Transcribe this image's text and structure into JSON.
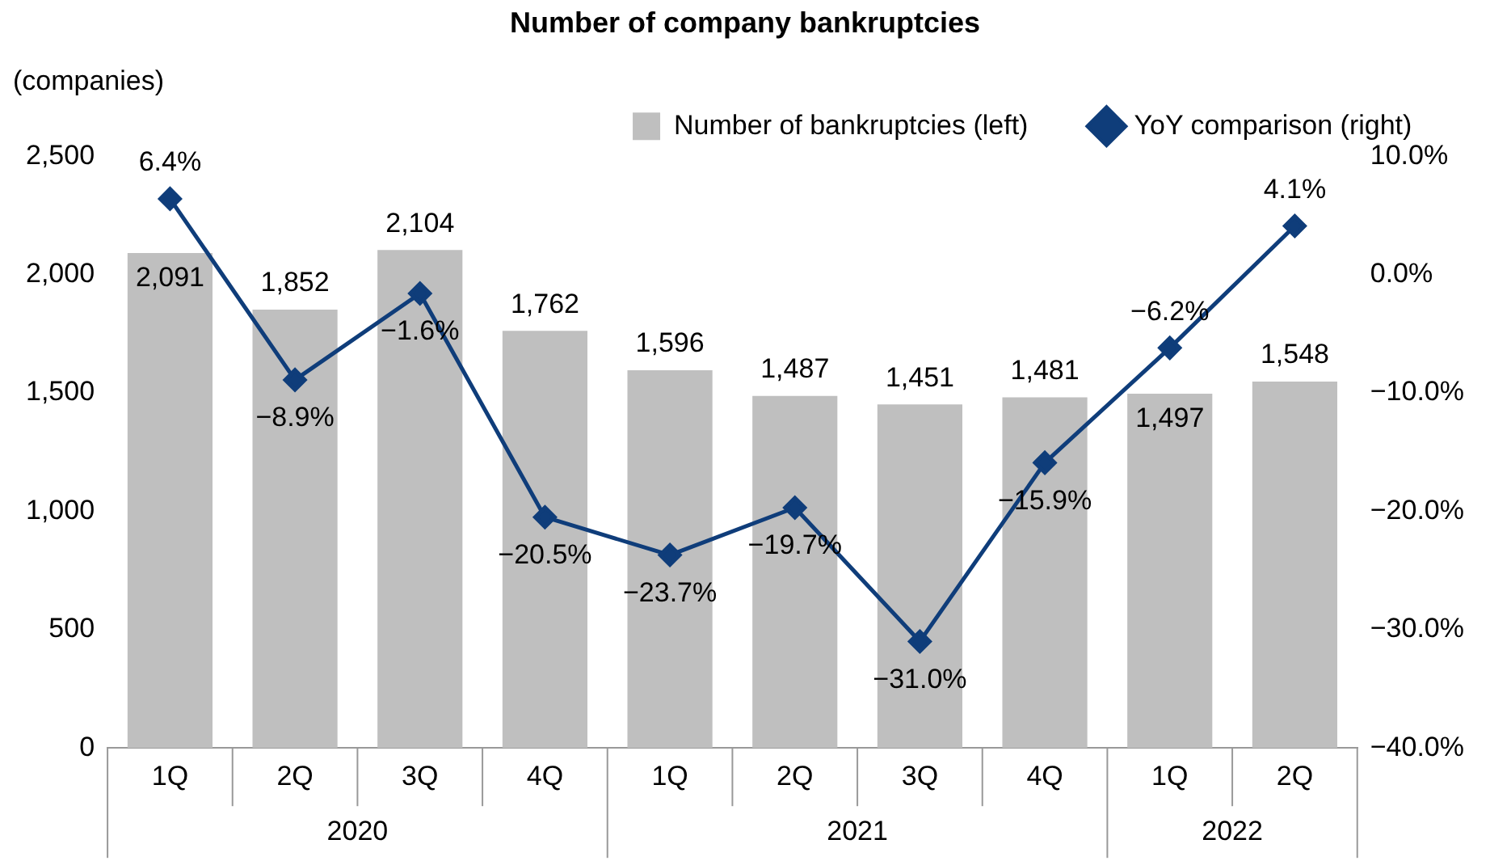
{
  "chart_data": {
    "type": "bar",
    "title": "Number of company bankruptcies",
    "ylabel": "(companies)",
    "categories": [
      "1Q",
      "2Q",
      "3Q",
      "4Q",
      "1Q",
      "2Q",
      "3Q",
      "4Q",
      "1Q",
      "2Q"
    ],
    "annotations": [
      "2020",
      "2021",
      "2022"
    ],
    "series": [
      {
        "name": "Number of bankruptcies (left)",
        "color": "#bfbfbf",
        "values": [
          2091,
          1852,
          2104,
          1762,
          1596,
          1487,
          1451,
          1481,
          1497,
          1548
        ],
        "value_labels": [
          "2,091",
          "1,852",
          "2,104",
          "1,762",
          "1,596",
          "1,487",
          "1,451",
          "1,481",
          "1,497",
          "1,548"
        ]
      },
      {
        "name": "YoY comparison (right)",
        "type": "line",
        "axis": "y2",
        "color": "#0f3d7a",
        "marker": "diamond",
        "values": [
          6.4,
          -8.9,
          -1.6,
          -20.5,
          -23.7,
          -19.7,
          -31.0,
          -15.9,
          -6.2,
          4.1
        ],
        "value_labels": [
          "6.4%",
          "−8.9%",
          "−1.6%",
          "−20.5%",
          "−23.7%",
          "−19.7%",
          "−31.0%",
          "−15.9%",
          "−6.2%",
          "4.1%"
        ]
      }
    ],
    "ylim": [
      0,
      2500
    ],
    "yticks": [
      {
        "value": 0,
        "label": "0"
      },
      {
        "value": 500,
        "label": "500"
      },
      {
        "value": 1000,
        "label": "1,000"
      },
      {
        "value": 1500,
        "label": "1,500"
      },
      {
        "value": 2000,
        "label": "2,000"
      },
      {
        "value": 2500,
        "label": "2,500"
      }
    ],
    "y2lim": [
      -40,
      10
    ],
    "y2ticks": [
      {
        "value": -40,
        "label": "−40.0%"
      },
      {
        "value": -30,
        "label": "−30.0%"
      },
      {
        "value": -20,
        "label": "−20.0%"
      },
      {
        "value": -10,
        "label": "−10.0%"
      },
      {
        "value": 0,
        "label": "0.0%"
      },
      {
        "value": 10,
        "label": "10.0%"
      }
    ],
    "grid": false,
    "legend": "top"
  }
}
